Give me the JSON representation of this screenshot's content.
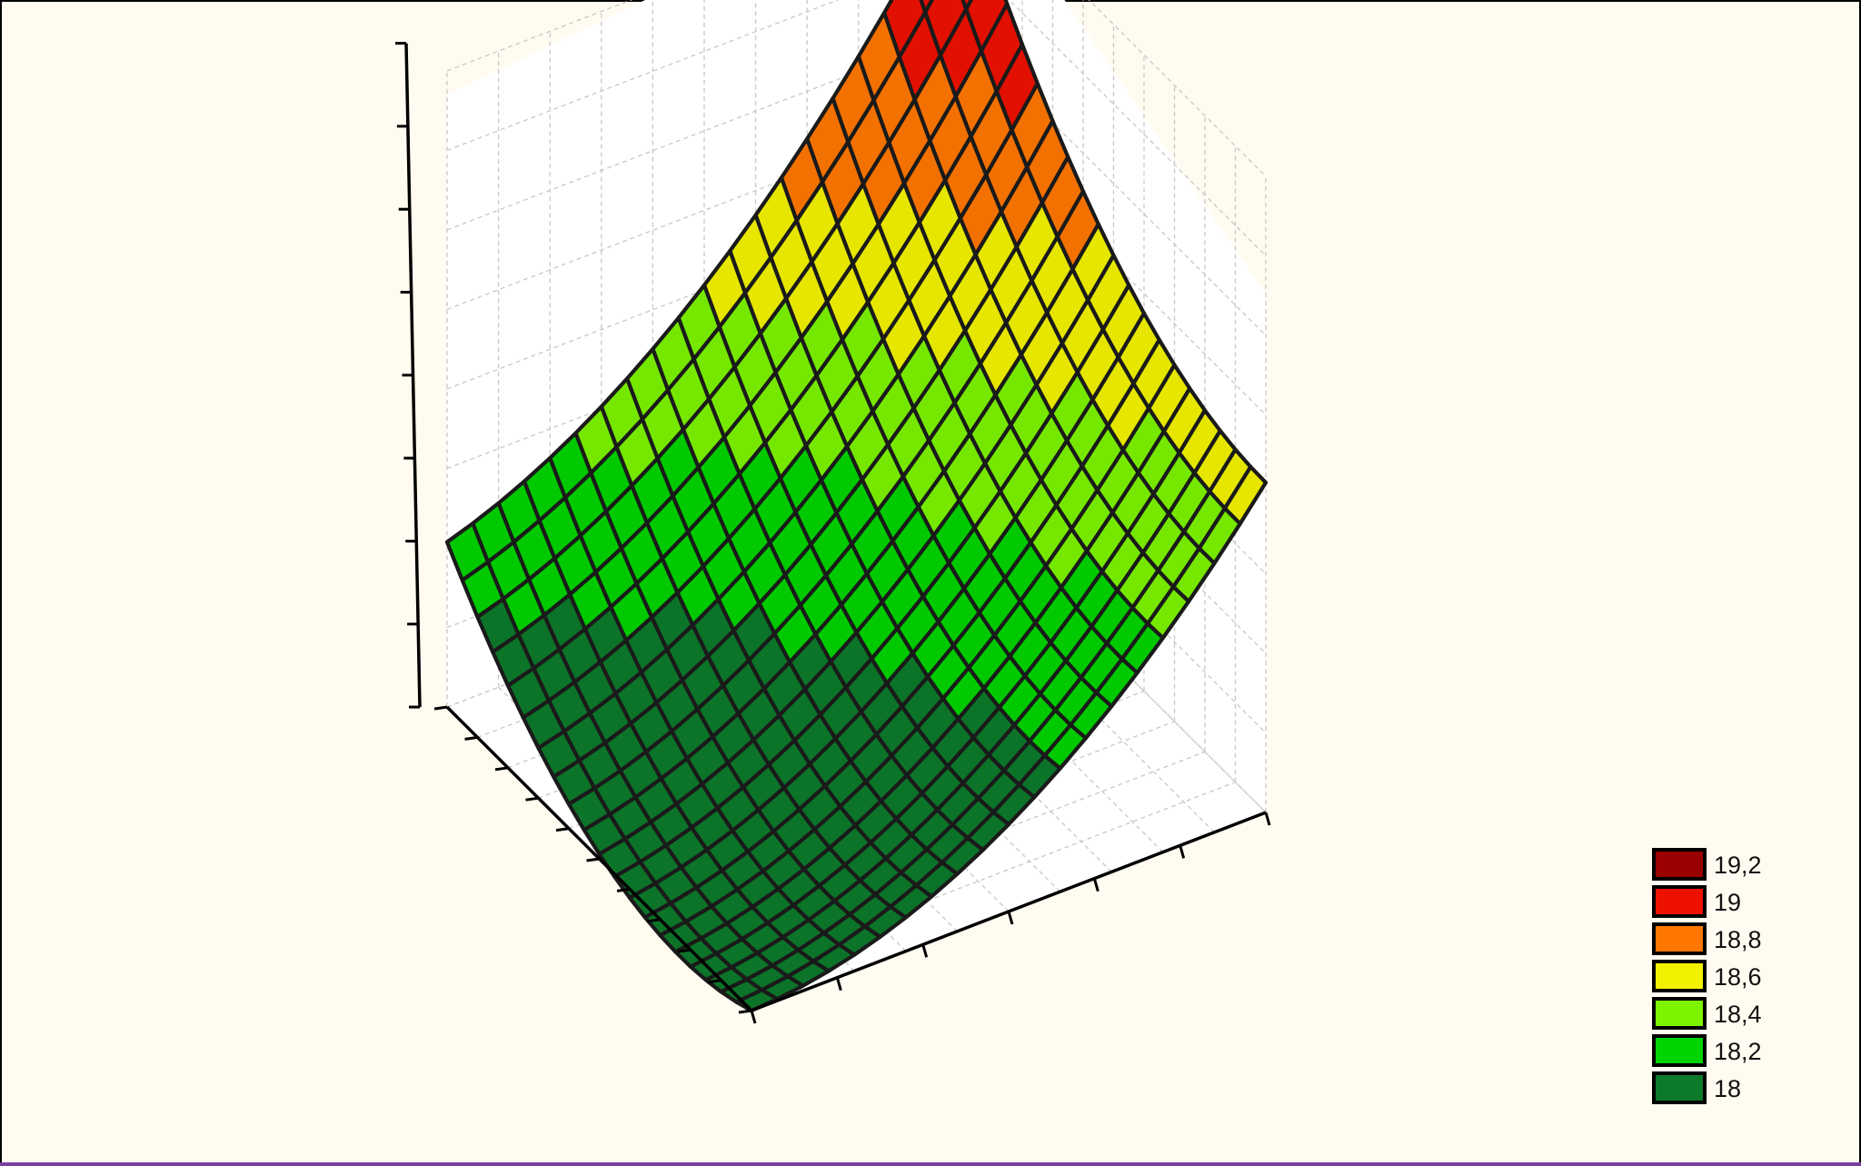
{
  "chart_data": {
    "type": "surface3d",
    "title": "",
    "xlabel": "",
    "ylabel": "",
    "zlabel": "",
    "legend_position": "bottom-right",
    "grid": true,
    "surface": {
      "rows": 20,
      "cols": 20,
      "z_range": [
        17.95,
        19.3
      ],
      "corner_z": {
        "left": 18.3,
        "top": 19.3,
        "right": 18.65,
        "bottom": 17.95
      }
    },
    "legend": [
      {
        "label": "19,2",
        "color": "#9b0000"
      },
      {
        "label": "19",
        "color": "#ee1100"
      },
      {
        "label": "18,8",
        "color": "#ff7700"
      },
      {
        "label": "18,6",
        "color": "#f2f200"
      },
      {
        "label": "18,4",
        "color": "#7cf400"
      },
      {
        "label": "18,2",
        "color": "#00d400"
      },
      {
        "label": "18",
        "color": "#0d7a2a"
      }
    ]
  }
}
